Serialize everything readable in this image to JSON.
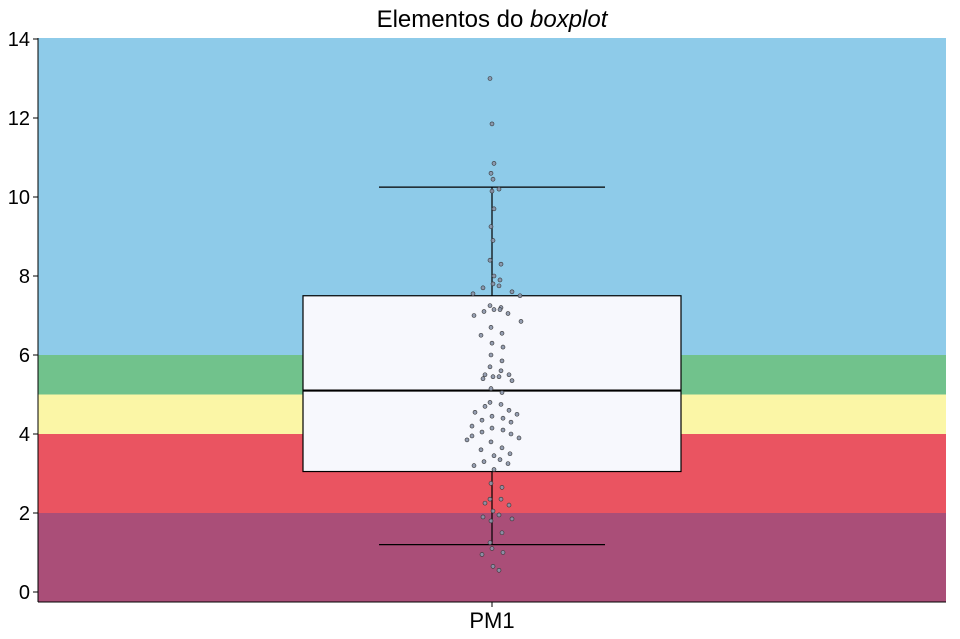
{
  "chart_data": {
    "type": "boxplot",
    "title": "Elementos do",
    "title_italic": "boxplot",
    "xlabel": "",
    "ylabel": "",
    "categories": [
      "PM1"
    ],
    "ylim": [
      -0.25,
      14
    ],
    "yticks": [
      0,
      2,
      4,
      6,
      8,
      10,
      12,
      14
    ],
    "bands": [
      {
        "from": 0,
        "to": 2,
        "color": "#aa4e78"
      },
      {
        "from": 2,
        "to": 4,
        "color": "#ea5461"
      },
      {
        "from": 4,
        "to": 5,
        "color": "#fbf6a6"
      },
      {
        "from": 5,
        "to": 6,
        "color": "#71c28c"
      },
      {
        "from": 6,
        "to": 14,
        "color": "#8ecbe9"
      }
    ],
    "box": {
      "whisker_low": 1.2,
      "q1": 3.05,
      "median": 5.1,
      "q3": 7.5,
      "whisker_high": 10.25
    },
    "points": [
      13.0,
      11.85,
      10.85,
      10.6,
      10.45,
      10.2,
      10.15,
      9.7,
      9.25,
      8.9,
      8.4,
      8.3,
      8.0,
      7.9,
      7.8,
      7.75,
      7.7,
      7.6,
      7.55,
      7.5,
      7.25,
      7.2,
      7.15,
      7.15,
      7.1,
      7.05,
      7.0,
      6.85,
      6.7,
      6.55,
      6.5,
      6.3,
      6.2,
      6.0,
      5.85,
      5.7,
      5.6,
      5.5,
      5.5,
      5.45,
      5.45,
      5.4,
      5.35,
      5.15,
      5.05,
      4.8,
      4.75,
      4.7,
      4.6,
      4.55,
      4.5,
      4.45,
      4.4,
      4.35,
      4.3,
      4.2,
      4.15,
      4.1,
      4.05,
      4.0,
      3.95,
      3.9,
      3.85,
      3.8,
      3.65,
      3.6,
      3.5,
      3.45,
      3.35,
      3.3,
      3.25,
      3.2,
      3.1,
      2.75,
      2.65,
      2.35,
      2.35,
      2.25,
      2.2,
      2.05,
      1.95,
      1.9,
      1.85,
      1.8,
      1.5,
      1.25,
      1.1,
      1.0,
      0.95,
      0.65,
      0.55
    ],
    "colors": {
      "box_fill": "#f7f8fd",
      "box_stroke": "#000000",
      "point_fill": "#8a93a8",
      "point_stroke": "#333333"
    },
    "grid": false,
    "legend": "none"
  }
}
